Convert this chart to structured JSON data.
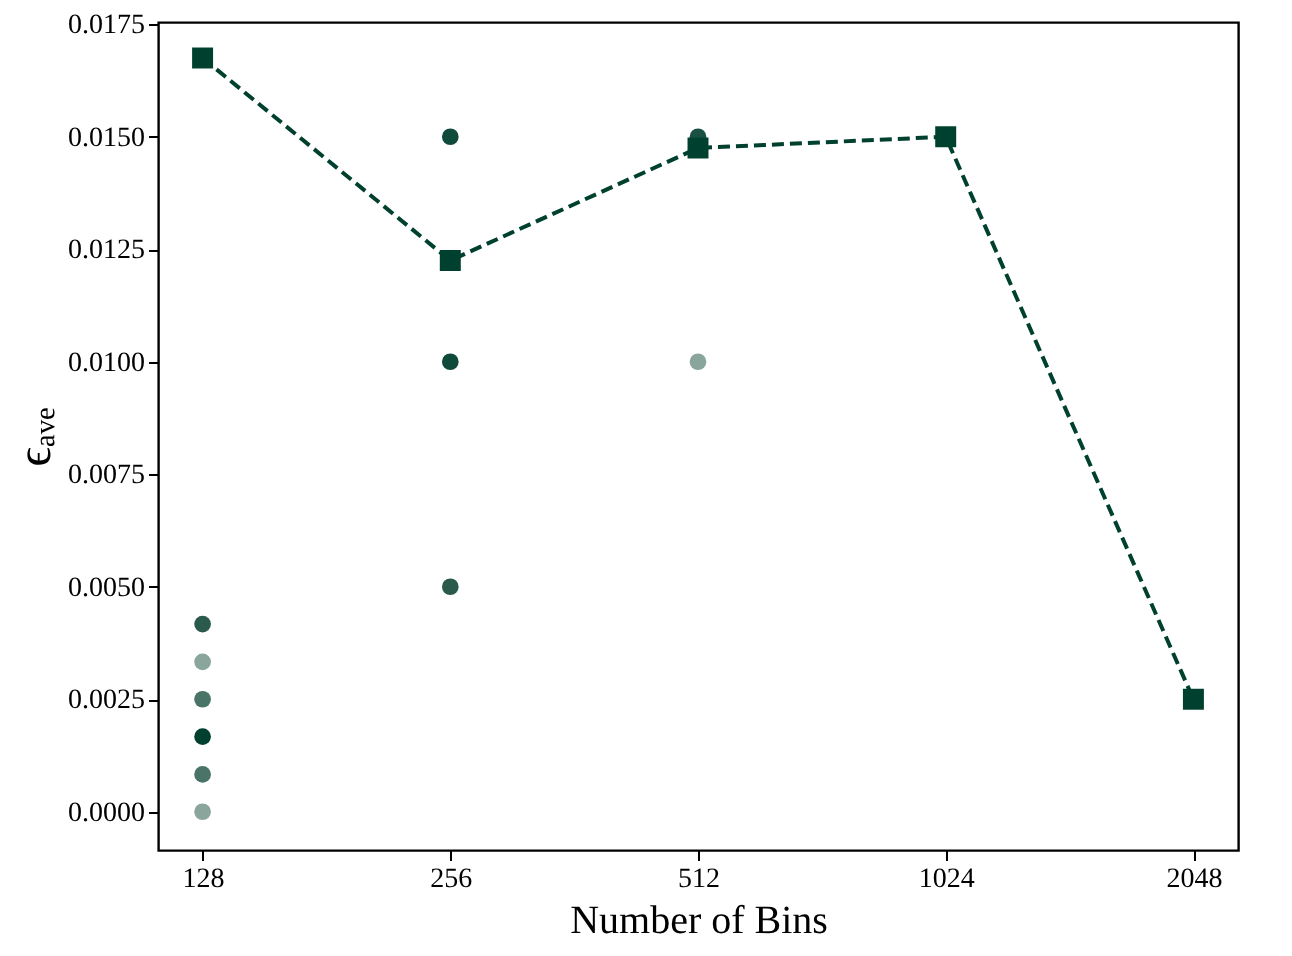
{
  "chart_data": {
    "type": "scatter",
    "xlabel": "Number of Bins",
    "ylabel": "ϵₐᵥₑ",
    "categories": [
      "128",
      "256",
      "512",
      "1024",
      "2048"
    ],
    "ylim": [
      -0.00085,
      0.01755
    ],
    "yticks": [
      {
        "value": 0,
        "label": "0.0000"
      },
      {
        "value": 0.0025,
        "label": "0.0025"
      },
      {
        "value": 0.005,
        "label": "0.0050"
      },
      {
        "value": 0.0075,
        "label": "0.0075"
      },
      {
        "value": 0.01,
        "label": "0.0100"
      },
      {
        "value": 0.0125,
        "label": "0.0125"
      },
      {
        "value": 0.015,
        "label": "0.0150"
      },
      {
        "value": 0.0175,
        "label": "0.0175"
      }
    ],
    "grid": false,
    "series": [
      {
        "marker": "circle",
        "x": [
          "128",
          "128",
          "128",
          "128",
          "128",
          "128",
          "256",
          "256",
          "256",
          "512",
          "512"
        ],
        "values": [
          0.00417,
          0.00333,
          0.0025,
          0.00167,
          0.00083,
          0,
          0.015,
          0.01,
          0.005,
          0.015,
          0.01
        ],
        "colors": [
          "#2a5a4c",
          "#8aa59c",
          "#4a7467",
          "#00402f",
          "#4a7467",
          "#8aa59c",
          "#0f4a3a",
          "#0f4a3a",
          "#2a5a4c",
          "#1a5042",
          "#8aa59c"
        ]
      },
      {
        "type": "line",
        "marker": "square",
        "line_style": "dashed",
        "color": "#00402f",
        "values": [
          0.01675,
          0.01225,
          0.01475,
          0.015,
          0.0025
        ]
      }
    ]
  }
}
